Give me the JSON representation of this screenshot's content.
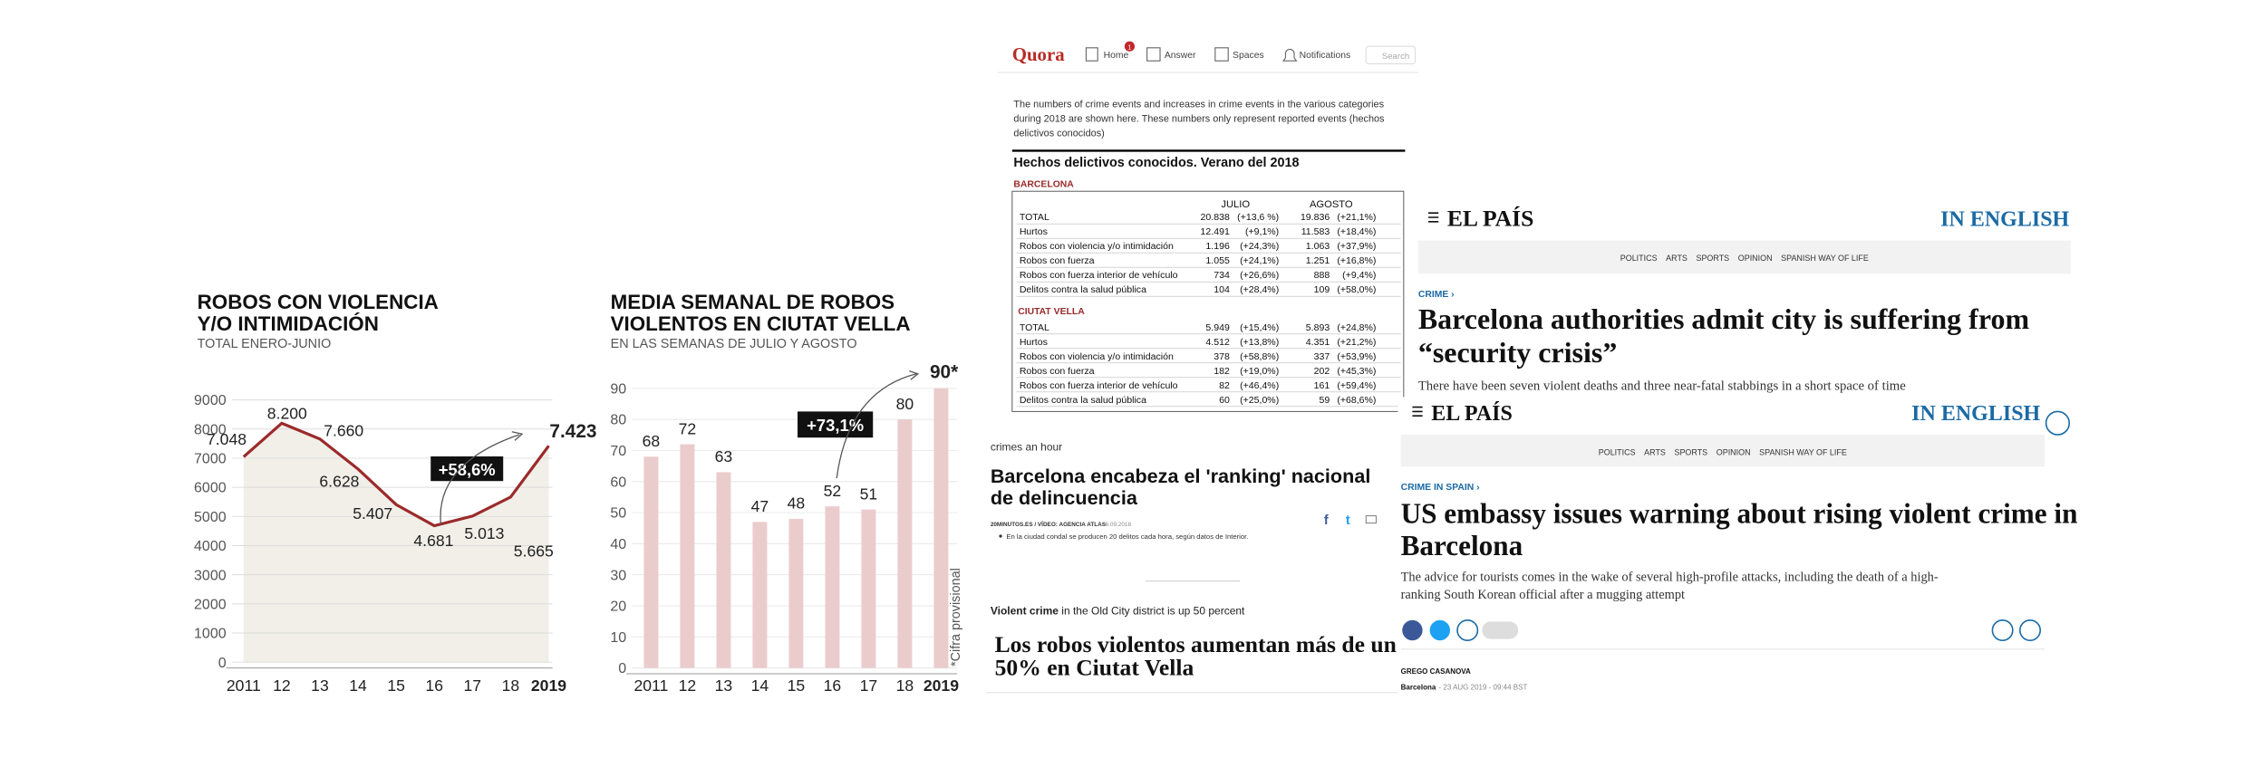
{
  "chart_data": [
    {
      "type": "line",
      "title": [
        "ROBOS CON VIOLENCIA",
        "Y/O INTIMIDACIÓN"
      ],
      "subtitle": "TOTAL ENERO-JUNIO",
      "categories": [
        "2011",
        "12",
        "13",
        "14",
        "15",
        "16",
        "17",
        "18",
        "2019"
      ],
      "values": [
        7048,
        8200,
        7660,
        6628,
        5407,
        4681,
        5013,
        5665,
        7423
      ],
      "value_labels": [
        "7.048",
        "8.200",
        "7.660",
        "6.628",
        "5.407",
        "4.681",
        "5.013",
        "5.665",
        "7.423"
      ],
      "color": "#9b2a2a",
      "area_color": "#f1efe8",
      "grid": true,
      "ylim": [
        0,
        9000
      ],
      "yticks": [
        0,
        1000,
        2000,
        3000,
        4000,
        5000,
        6000,
        7000,
        8000,
        9000
      ],
      "annotation": "+58,6%"
    },
    {
      "type": "bar",
      "title": [
        "MEDIA SEMANAL DE ROBOS",
        "VIOLENTOS EN CIUTAT VELLA"
      ],
      "subtitle": "EN LAS SEMANAS DE JULIO Y AGOSTO",
      "categories": [
        "2011",
        "12",
        "13",
        "14",
        "15",
        "16",
        "17",
        "18",
        "2019"
      ],
      "values": [
        68,
        72,
        63,
        47,
        48,
        52,
        51,
        80,
        90
      ],
      "value_labels": [
        "68",
        "72",
        "63",
        "47",
        "48",
        "52",
        "51",
        "80",
        "90*"
      ],
      "color": "#ebcccc",
      "grid": true,
      "ylim": [
        0,
        90
      ],
      "yticks": [
        0,
        10,
        20,
        30,
        40,
        50,
        60,
        70,
        80,
        90
      ],
      "annotation": "+73,1%",
      "note": "*Cifra provisional"
    }
  ],
  "quora": {
    "logo": "Quora",
    "badge": "1",
    "nav": [
      "Home",
      "Answer",
      "Spaces",
      "Notifications",
      "Search"
    ],
    "intro": [
      "The numbers of crime events and increases in crime events in the various categories",
      "during 2018 are shown here. These numbers only represent reported events (hechos",
      "delictivos conocidos)"
    ],
    "table": {
      "title": "Hechos delictivos conocidos. Verano del 2018",
      "columns": [
        "JULIO",
        "AGOSTO"
      ],
      "sections": [
        {
          "name": "BARCELONA",
          "rows": [
            [
              "TOTAL",
              "20.838",
              "(+13,6 %)",
              "19.836",
              "(+21,1%)"
            ],
            [
              "Hurtos",
              "12.491",
              "(+9,1%)",
              "11.583",
              "(+18,4%)"
            ],
            [
              "Robos con violencia y/o intimidación",
              "1.196",
              "(+24,3%)",
              "1.063",
              "(+37,9%)"
            ],
            [
              "Robos con fuerza",
              "1.055",
              "(+24,1%)",
              "1.251",
              "(+16,8%)"
            ],
            [
              "Robos con fuerza interior de vehículo",
              "734",
              "(+26,6%)",
              "888",
              "(+9,4%)"
            ],
            [
              "Delitos contra la salud pública",
              "104",
              "(+28,4%)",
              "109",
              "(+58,0%)"
            ]
          ]
        },
        {
          "name": "CIUTAT VELLA",
          "rows": [
            [
              "TOTAL",
              "5.949",
              "(+15,4%)",
              "5.893",
              "(+24,8%)"
            ],
            [
              "Hurtos",
              "4.512",
              "(+13,8%)",
              "4.351",
              "(+21,2%)"
            ],
            [
              "Robos con violencia y/o intimidación",
              "378",
              "(+58,8%)",
              "337",
              "(+53,9%)"
            ],
            [
              "Robos con fuerza",
              "182",
              "(+19,0%)",
              "202",
              "(+45,3%)"
            ],
            [
              "Robos con fuerza interior de vehículo",
              "82",
              "(+46,4%)",
              "161",
              "(+59,4%)"
            ],
            [
              "Delitos contra la salud pública",
              "60",
              "(+25,0%)",
              "59",
              "(+68,6%)"
            ]
          ]
        }
      ]
    },
    "fragment": "crimes an hour",
    "headline": [
      "Barcelona encabeza el 'ranking' nacional",
      "de delincuencia"
    ],
    "meta": "20MINUTOS.ES / VÍDEO: AGENCIA ATLAS",
    "date": "16.09.2018",
    "bullet": "En la ciudad condal se producen 20 delitos cada hora, según datos de Interior.",
    "kicker": "Violent crime",
    "kicker_rest": " in the Old City district is up 50 percent",
    "headline2": [
      "Los robos violentos aumentan más de un",
      "50% en Ciutat Vella"
    ]
  },
  "elpais_1": {
    "logo": "EL PAÍS",
    "edition": "IN ENGLISH",
    "nav": [
      "POLITICS",
      "ARTS",
      "SPORTS",
      "OPINION",
      "SPANISH WAY OF LIFE"
    ],
    "section": "CRIME ›",
    "headline": [
      "Barcelona authorities admit city is suffering from",
      "“security crisis”"
    ],
    "subtitle": "There have been seven violent deaths and three near-fatal stabbings in a short space of time"
  },
  "elpais_2": {
    "logo": "EL PAÍS",
    "edition": "IN ENGLISH",
    "nav": [
      "POLITICS",
      "ARTS",
      "SPORTS",
      "OPINION",
      "SPANISH WAY OF LIFE"
    ],
    "section": "CRIME IN SPAIN ›",
    "headline": [
      "US embassy issues warning about rising violent crime in",
      "Barcelona"
    ],
    "subtitle": [
      "The advice for tourists comes in the wake of several high-profile attacks, including the death of a high-",
      "ranking South Korean official after a mugging attempt"
    ],
    "author": "GREGO CASANOVA",
    "place": "Barcelona",
    "dateline": "- 23 AUG 2019 - 09:44 BST"
  }
}
